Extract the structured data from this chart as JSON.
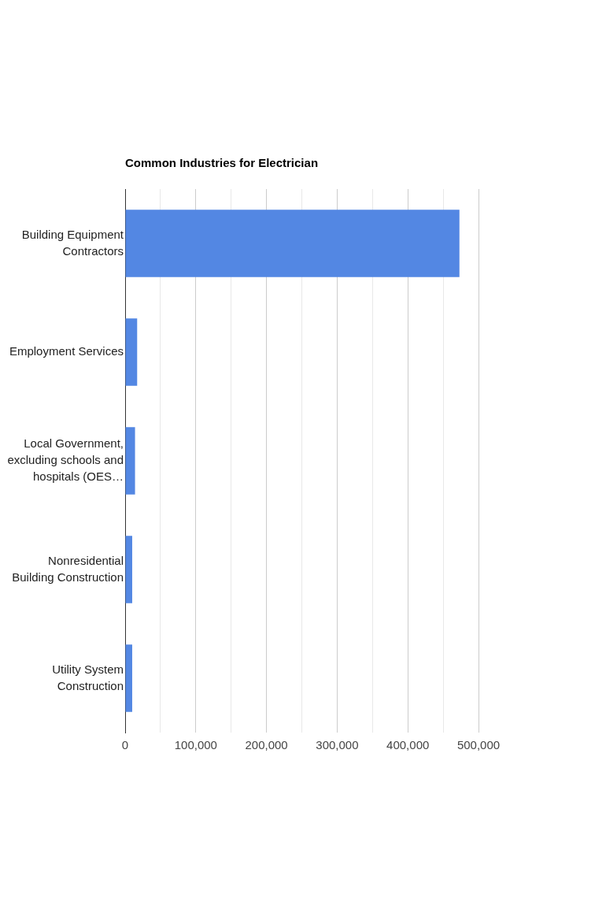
{
  "chart_data": {
    "type": "bar",
    "orientation": "horizontal",
    "title": "Common Industries for Electrician",
    "categories": [
      "Building Equipment Contractors",
      "Employment Services",
      "Local Government, excluding schools and hospitals (OES…",
      "Nonresidential Building Construction",
      "Utility System Construction"
    ],
    "values": [
      473000,
      17000,
      14000,
      10000,
      10000
    ],
    "color": "#5387e3",
    "xlim": [
      0,
      500000
    ],
    "xticks": [
      0,
      {
        "value": 50000,
        "label": null
      },
      {
        "value": 100000,
        "label": "100,000"
      },
      {
        "value": 150000,
        "label": null
      },
      {
        "value": 200000,
        "label": "200,000"
      },
      {
        "value": 250000,
        "label": null
      },
      {
        "value": 300000,
        "label": "300,000"
      },
      {
        "value": 350000,
        "label": null
      },
      {
        "value": 400000,
        "label": "400,000"
      },
      {
        "value": 450000,
        "label": null
      },
      {
        "value": 500000,
        "label": "500,000"
      }
    ],
    "grid": "x",
    "legend": false
  }
}
